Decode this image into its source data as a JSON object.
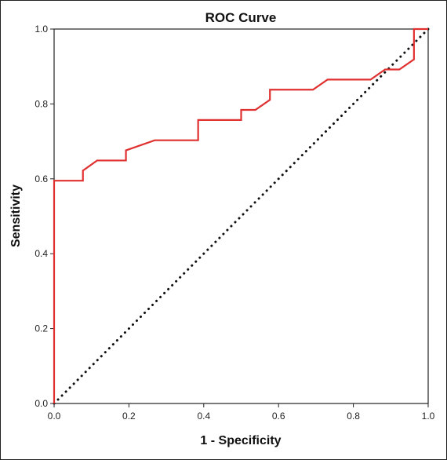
{
  "chart_data": {
    "type": "line",
    "title": "ROC Curve",
    "xlabel": "1 - Specificity",
    "ylabel": "Sensitivity",
    "xlim": [
      0.0,
      1.0
    ],
    "ylim": [
      0.0,
      1.0
    ],
    "x_ticks": [
      "0.0",
      "0.2",
      "0.4",
      "0.6",
      "0.8",
      "1.0"
    ],
    "y_ticks": [
      "0.0",
      "0.2",
      "0.4",
      "0.6",
      "0.8",
      "1.0"
    ],
    "grid": false,
    "legend": false,
    "series": [
      {
        "role": "roc-curve",
        "color": "#e03030",
        "line_style": "solid",
        "x": [
          0.0,
          0.0,
          0.077,
          0.077,
          0.115,
          0.192,
          0.192,
          0.269,
          0.385,
          0.385,
          0.5,
          0.5,
          0.538,
          0.577,
          0.577,
          0.692,
          0.731,
          0.846,
          0.885,
          0.923,
          0.962,
          0.962,
          1.0
        ],
        "y": [
          0.0,
          0.595,
          0.595,
          0.622,
          0.649,
          0.649,
          0.676,
          0.703,
          0.703,
          0.757,
          0.757,
          0.784,
          0.784,
          0.811,
          0.838,
          0.838,
          0.865,
          0.865,
          0.892,
          0.892,
          0.919,
          1.0,
          1.0
        ]
      },
      {
        "role": "reference-line",
        "color": "#111111",
        "line_style": "dotted",
        "x": [
          0.0,
          1.0
        ],
        "y": [
          0.0,
          1.0
        ]
      }
    ]
  }
}
